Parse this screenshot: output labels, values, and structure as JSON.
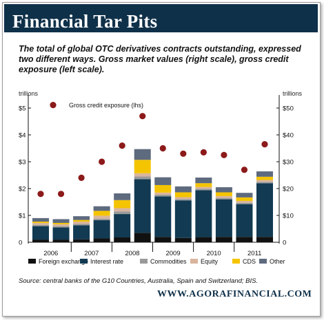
{
  "title": "Financial Tar Pits",
  "subtitle": "The total of global OTC derivatives contracts outstanding, expressed two different ways. Gross market values (right scale), gross credit exposure (left scale).",
  "source": "Source: central banks of the G10 Countries, Australia, Spain and Switzerland; BIS.",
  "website": "WWW.AGORAFINANCIAL.COM",
  "colors": {
    "title_bar": "#0f3049",
    "foreign_exchange": "#111111",
    "interest_rate": "#123a52",
    "commodities": "#9a9a9a",
    "equity": "#d9b59e",
    "cds": "#f5c400",
    "other": "#5e6a7e",
    "credit_exposure": "#8c1a1a"
  },
  "chart_data": {
    "type": "bar",
    "stacked": true,
    "left_axis": {
      "label": "trillions",
      "ticks": [
        "$5",
        "$4",
        "$3",
        "$2",
        "$1",
        "0"
      ],
      "ylim": [
        0,
        5
      ]
    },
    "right_axis": {
      "label": "trillions",
      "ticks": [
        "$50",
        "$40",
        "$30",
        "$20",
        "$10",
        "0"
      ],
      "ylim": [
        0,
        50
      ]
    },
    "x_tick_labels": [
      "2006",
      "2007",
      "2008",
      "2009",
      "2010",
      "2011"
    ],
    "periods": 12,
    "series": [
      {
        "name": "Foreign exchange",
        "values": [
          1.0,
          1.0,
          1.1,
          1.4,
          1.8,
          3.5,
          2.0,
          1.6,
          1.9,
          2.0,
          2.0,
          2.0
        ]
      },
      {
        "name": "Interest rate",
        "values": [
          5.0,
          4.5,
          5.2,
          6.8,
          8.7,
          20.0,
          15.1,
          14.0,
          17.5,
          14.0,
          12.2,
          20.0
        ]
      },
      {
        "name": "Commodities",
        "values": [
          0.5,
          0.5,
          0.5,
          0.6,
          1.0,
          1.0,
          0.6,
          0.5,
          0.5,
          0.5,
          0.5,
          0.5
        ]
      },
      {
        "name": "Equity",
        "values": [
          0.7,
          0.7,
          0.9,
          1.1,
          1.2,
          1.2,
          0.8,
          0.7,
          0.7,
          0.7,
          0.7,
          0.7
        ]
      },
      {
        "name": "CDS",
        "values": [
          0.5,
          0.5,
          0.6,
          1.8,
          3.0,
          5.0,
          2.8,
          1.8,
          1.4,
          1.4,
          1.3,
          1.2
        ]
      },
      {
        "name": "Other",
        "values": [
          1.3,
          1.4,
          1.4,
          1.7,
          2.5,
          4.0,
          2.9,
          2.2,
          2.1,
          1.9,
          1.7,
          2.0
        ]
      }
    ],
    "overlay": {
      "name": "Gross credit exposure (lhs)",
      "type": "scatter",
      "axis": "left",
      "values": [
        1.8,
        1.8,
        2.4,
        3.0,
        3.6,
        4.7,
        3.5,
        3.3,
        3.35,
        3.25,
        2.7,
        3.65
      ],
      "legend_marker_value": 5.1
    }
  }
}
